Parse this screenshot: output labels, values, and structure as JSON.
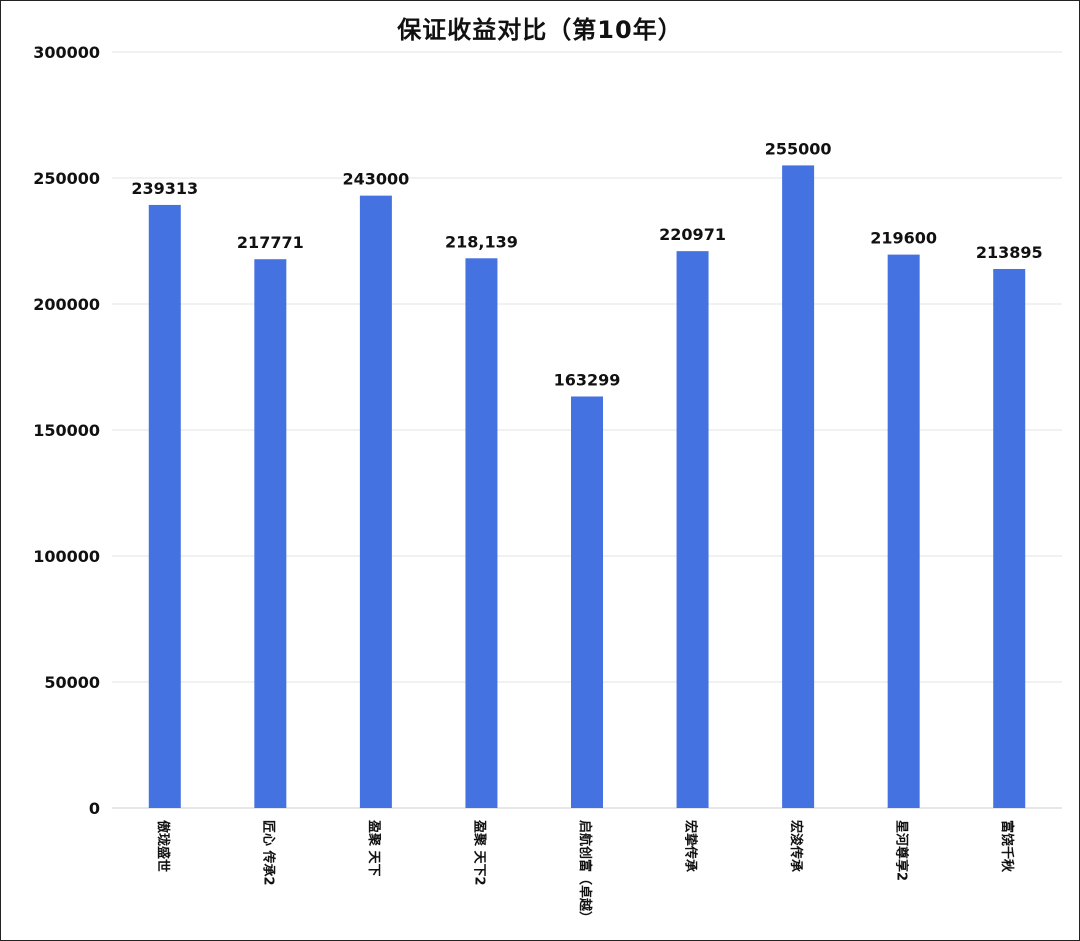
{
  "chart_data": {
    "type": "bar",
    "title": "保证收益对比（第10年）",
    "xlabel": "",
    "ylabel": "",
    "ylim": [
      0,
      300000
    ],
    "yticks": [
      0,
      50000,
      100000,
      150000,
      200000,
      250000,
      300000
    ],
    "grid": true,
    "bar_color": "#4472E0",
    "categories": [
      "傲珑盛世",
      "匠心 传承2",
      "盈聚 天下",
      "盈聚 天下2",
      "启航创富（卓越）",
      "宏挚传承",
      "宏浚传承",
      "星河尊享2",
      "富饶千秋"
    ],
    "values": [
      239313,
      217771,
      243000,
      218139,
      163299,
      220971,
      255000,
      219600,
      213895
    ],
    "data_labels": [
      "239313",
      "217771",
      "243000",
      "218,139",
      "163299",
      "220971",
      "255000",
      "219600",
      "213895"
    ]
  }
}
